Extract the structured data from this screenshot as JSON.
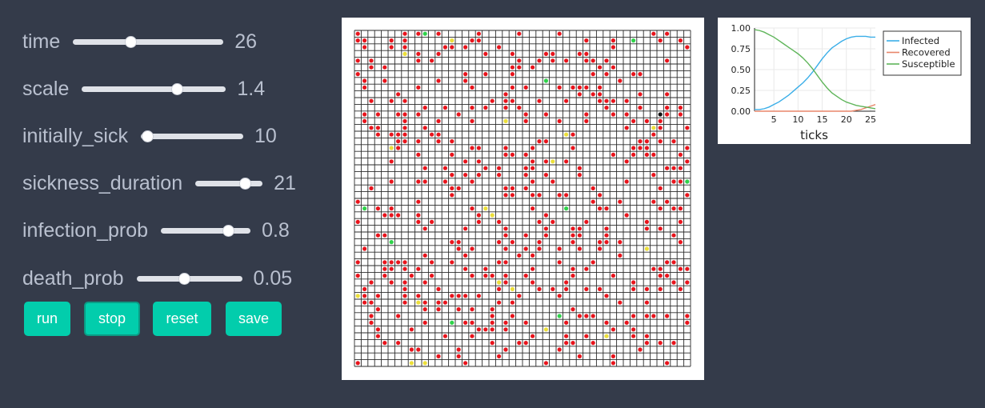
{
  "controls": {
    "time": {
      "label": "time",
      "value": "26",
      "fraction": 0.38
    },
    "scale": {
      "label": "scale",
      "value": "1.4",
      "fraction": 0.66
    },
    "initially_sick": {
      "label": "initially_sick",
      "value": "10",
      "fraction": 0.06
    },
    "sickness_duration": {
      "label": "sickness_duration",
      "value": "21",
      "fraction": 0.74
    },
    "infection_prob": {
      "label": "infection_prob",
      "value": "0.8",
      "fraction": 0.75
    },
    "death_prob": {
      "label": "death_prob",
      "value": "0.05",
      "fraction": 0.45
    }
  },
  "buttons": {
    "run": "run",
    "stop": "stop",
    "reset": "reset",
    "save": "save"
  },
  "grid": {
    "rows": 50,
    "cols": 50,
    "colors": {
      "infected": "#e8141c",
      "recovered": "#ecdf3a",
      "susceptible": "#2fd24a",
      "dead": "#111111"
    }
  },
  "chart_data": {
    "type": "line",
    "xlabel": "ticks",
    "ylabel": "",
    "xlim": [
      1,
      26
    ],
    "ylim": [
      0,
      1
    ],
    "x_ticks": [
      "5",
      "10",
      "15",
      "20",
      "25"
    ],
    "y_ticks": [
      "0.00",
      "0.25",
      "0.50",
      "0.75",
      "1.00"
    ],
    "legend_position": "top-right",
    "series": [
      {
        "name": "Infected",
        "color": "#3aaee8",
        "x": [
          1,
          2,
          3,
          4,
          5,
          6,
          7,
          8,
          9,
          10,
          11,
          12,
          13,
          14,
          15,
          16,
          17,
          18,
          19,
          20,
          21,
          22,
          23,
          24,
          25,
          26
        ],
        "y": [
          0.02,
          0.02,
          0.03,
          0.05,
          0.08,
          0.11,
          0.15,
          0.19,
          0.24,
          0.29,
          0.34,
          0.4,
          0.47,
          0.55,
          0.63,
          0.7,
          0.76,
          0.8,
          0.84,
          0.87,
          0.89,
          0.9,
          0.9,
          0.9,
          0.89,
          0.89
        ]
      },
      {
        "name": "Recovered",
        "color": "#e8866a",
        "x": [
          1,
          2,
          3,
          4,
          5,
          6,
          7,
          8,
          9,
          10,
          11,
          12,
          13,
          14,
          15,
          16,
          17,
          18,
          19,
          20,
          21,
          22,
          23,
          24,
          25,
          26
        ],
        "y": [
          0,
          0,
          0,
          0,
          0,
          0,
          0,
          0,
          0,
          0,
          0,
          0,
          0,
          0,
          0,
          0,
          0,
          0,
          0,
          0,
          0,
          0.01,
          0.02,
          0.04,
          0.06,
          0.08
        ]
      },
      {
        "name": "Susceptible",
        "color": "#5fb55a",
        "x": [
          1,
          2,
          3,
          4,
          5,
          6,
          7,
          8,
          9,
          10,
          11,
          12,
          13,
          14,
          15,
          16,
          17,
          18,
          19,
          20,
          21,
          22,
          23,
          24,
          25,
          26
        ],
        "y": [
          0.98,
          0.97,
          0.95,
          0.92,
          0.89,
          0.85,
          0.81,
          0.77,
          0.73,
          0.69,
          0.64,
          0.58,
          0.51,
          0.43,
          0.35,
          0.28,
          0.22,
          0.18,
          0.14,
          0.11,
          0.09,
          0.07,
          0.06,
          0.05,
          0.04,
          0.03
        ]
      }
    ]
  }
}
